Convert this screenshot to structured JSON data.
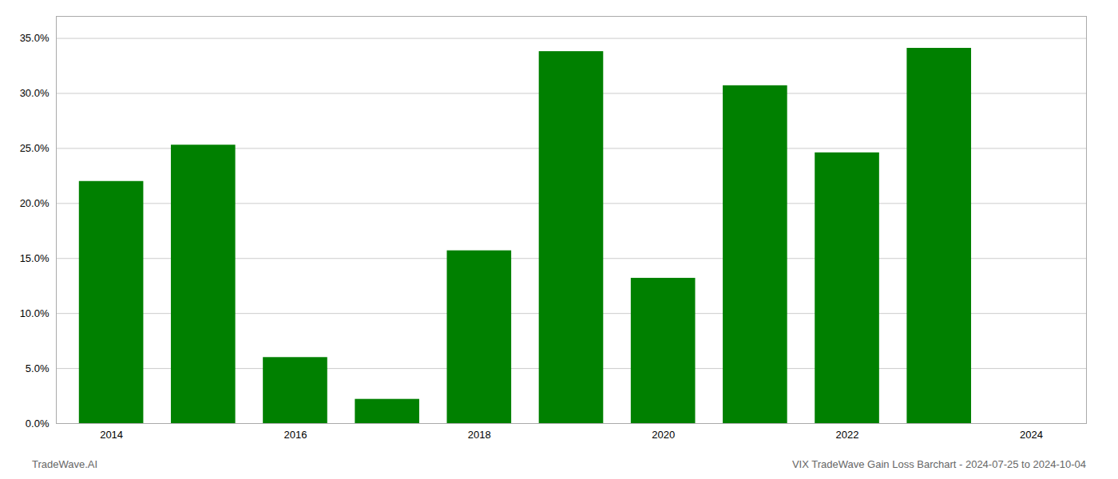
{
  "chart_data": {
    "type": "bar",
    "x": [
      2014,
      2015,
      2016,
      2017,
      2018,
      2019,
      2020,
      2021,
      2022,
      2023
    ],
    "values": [
      0.22,
      0.253,
      0.06,
      0.022,
      0.157,
      0.338,
      0.132,
      0.307,
      0.246,
      0.341
    ],
    "color": "#008000",
    "xlim": [
      2013.4,
      2024.6
    ],
    "xticks": [
      2014,
      2016,
      2018,
      2020,
      2022,
      2024
    ],
    "ylim": [
      0.0,
      0.37
    ],
    "yticks": [
      {
        "value": 0.0,
        "label": "0.0%"
      },
      {
        "value": 0.05,
        "label": "5.0%"
      },
      {
        "value": 0.1,
        "label": "10.0%"
      },
      {
        "value": 0.15,
        "label": "15.0%"
      },
      {
        "value": 0.2,
        "label": "20.0%"
      },
      {
        "value": 0.25,
        "label": "25.0%"
      },
      {
        "value": 0.3,
        "label": "30.0%"
      },
      {
        "value": 0.35,
        "label": "35.0%"
      }
    ],
    "grid": true,
    "annotations": [
      "TradeWave.AI",
      "VIX TradeWave Gain Loss Barchart - 2024-07-25 to 2024-10-04"
    ]
  }
}
